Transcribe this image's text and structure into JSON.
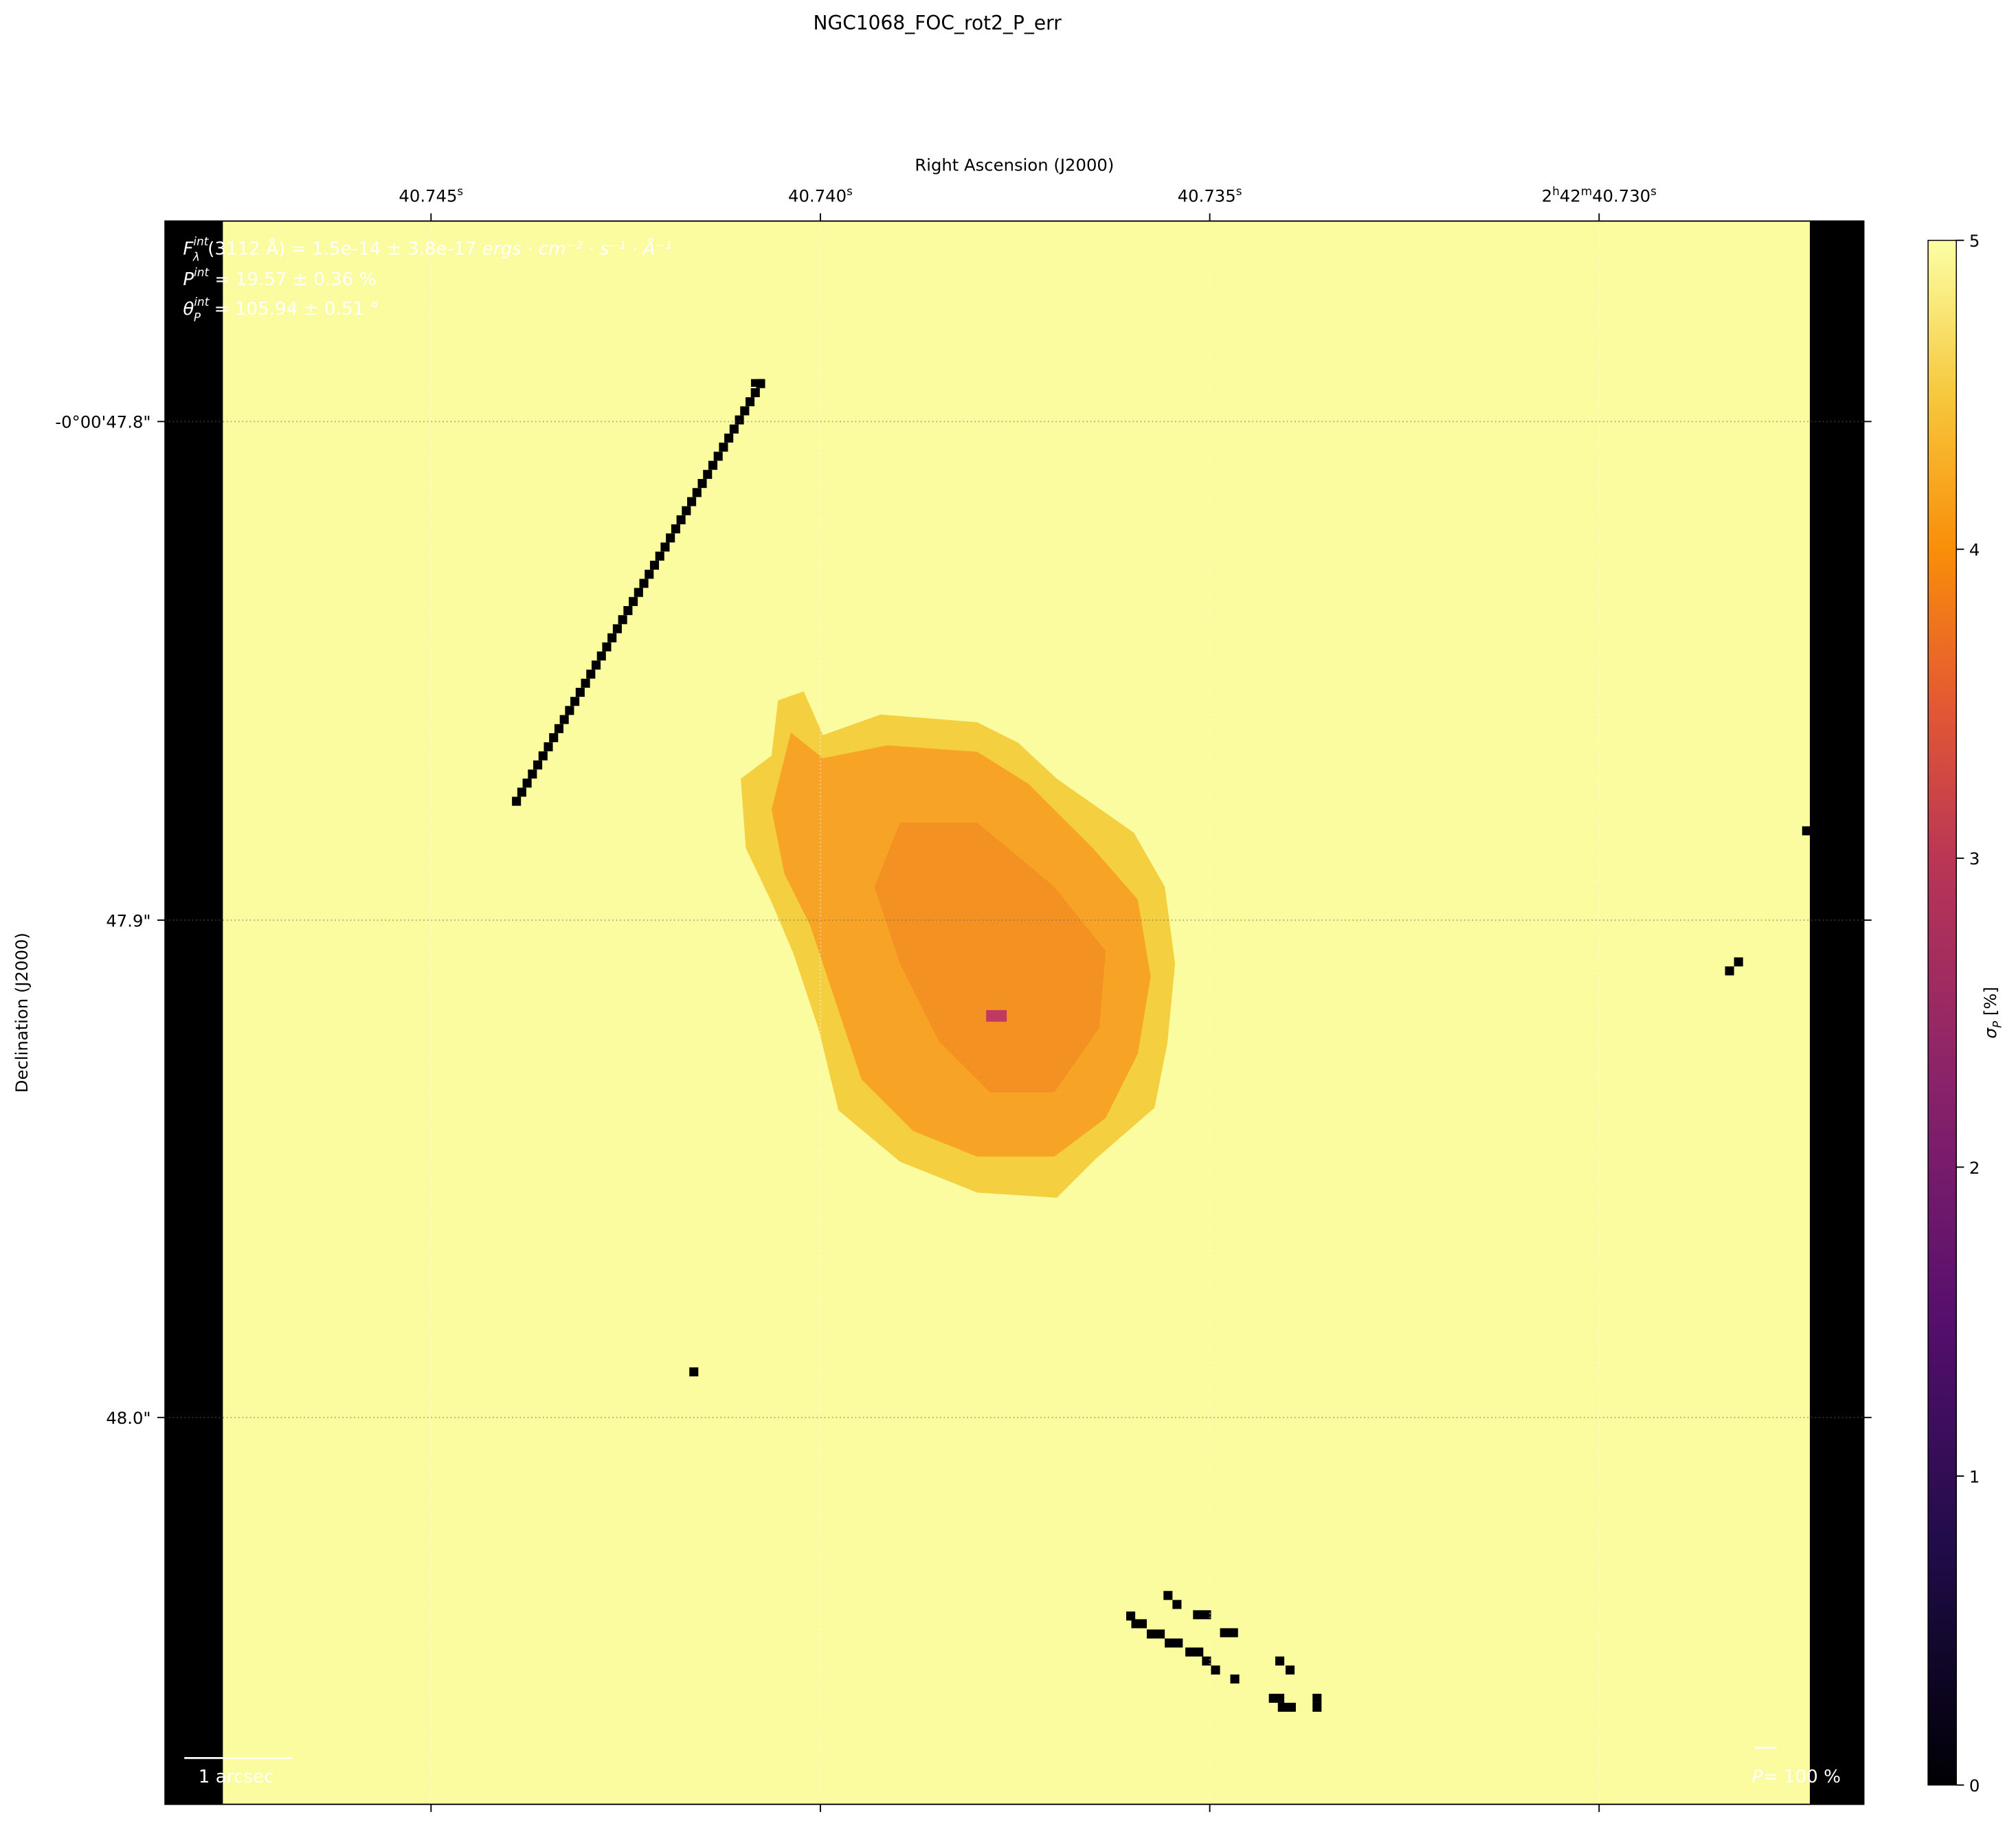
{
  "chart_data": {
    "type": "heatmap",
    "title": "NGC1068_FOC_rot2_P_err",
    "xlabel": "Right Ascension (J2000)",
    "ylabel": "Declination (J2000)",
    "x_ticks": [
      "40.745s",
      "40.740s",
      "40.735s",
      "2h42m40.730s"
    ],
    "x_tick_labels": [
      {
        "main": "40.745",
        "sup": "s"
      },
      {
        "main": "40.740",
        "sup": "s"
      },
      {
        "main": "40.735",
        "sup": "s"
      },
      {
        "main": "2",
        "sup": "h",
        "main2": "42",
        "sup2": "m",
        "main3": "40.730",
        "sup3": "s"
      }
    ],
    "y_ticks": [
      "-0°00'47.8\"",
      "47.9\"",
      "48.0\""
    ],
    "colorbar": {
      "label": "σ_P [%]",
      "label_main": "σ",
      "label_sub": "P",
      "label_unit": " [%]",
      "range": [
        0,
        5
      ],
      "ticks": [
        "0",
        "1",
        "2",
        "3",
        "4",
        "5"
      ],
      "colormap": "inferno"
    },
    "annotations": {
      "flux_sym": "F",
      "flux_sup": "int",
      "flux_sub": "λ",
      "flux_text": "(3112 Å) = 1.5e-14 ± 3.8e-17 ",
      "flux_unit": "ergs · cm⁻² · s⁻¹ · Å⁻¹",
      "pol_sym": "P",
      "pol_sup": "int",
      "pol_text": " = 19.57 ± 0.36 %",
      "ang_sym": "θ",
      "ang_sup": "int",
      "ang_sub": "P",
      "ang_text": " = 105.94 ± 0.51 °",
      "scalebar": "1 arcsec",
      "pol_scale_sym": "P",
      "pol_scale_text": "= 100 %"
    },
    "background_value_pct": 5,
    "blob_value_pct": 4,
    "colors": {
      "background": "#fbfba0",
      "blob": "#f8a020",
      "masked": "#000000",
      "center": "#c03a60"
    }
  }
}
